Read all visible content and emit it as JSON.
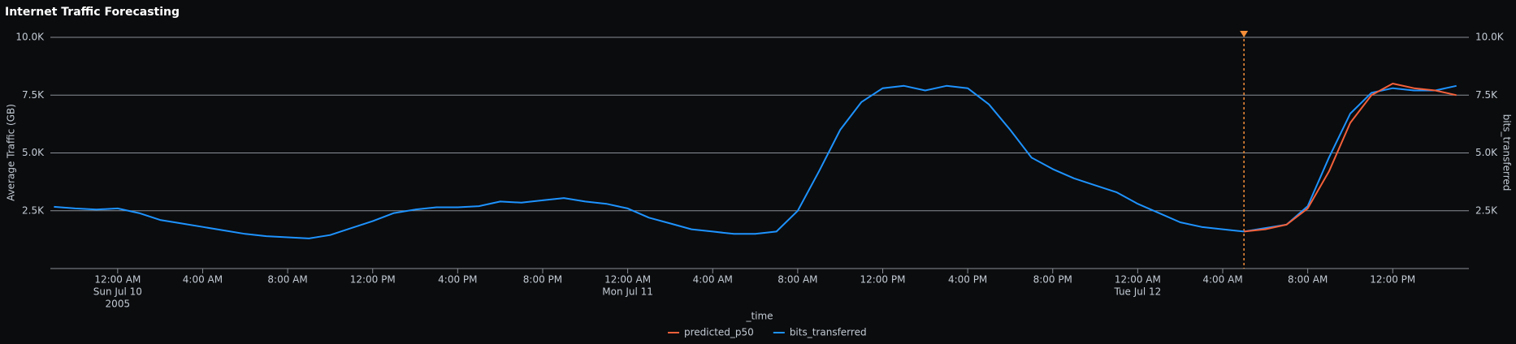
{
  "chart_data": {
    "type": "line",
    "title": "Internet Traffic Forecasting",
    "x_label": "_time",
    "y_label": "Average Traffic (GB)",
    "y2_label": "bits_transferred",
    "x": [
      "2005-07-09T21:00",
      "2005-07-09T22:00",
      "2005-07-09T23:00",
      "2005-07-10T00:00",
      "2005-07-10T01:00",
      "2005-07-10T02:00",
      "2005-07-10T03:00",
      "2005-07-10T04:00",
      "2005-07-10T05:00",
      "2005-07-10T06:00",
      "2005-07-10T07:00",
      "2005-07-10T08:00",
      "2005-07-10T09:00",
      "2005-07-10T10:00",
      "2005-07-10T11:00",
      "2005-07-10T12:00",
      "2005-07-10T13:00",
      "2005-07-10T14:00",
      "2005-07-10T15:00",
      "2005-07-10T16:00",
      "2005-07-10T17:00",
      "2005-07-10T18:00",
      "2005-07-10T19:00",
      "2005-07-10T20:00",
      "2005-07-10T21:00",
      "2005-07-10T22:00",
      "2005-07-10T23:00",
      "2005-07-11T00:00",
      "2005-07-11T01:00",
      "2005-07-11T02:00",
      "2005-07-11T03:00",
      "2005-07-11T04:00",
      "2005-07-11T05:00",
      "2005-07-11T06:00",
      "2005-07-11T07:00",
      "2005-07-11T08:00",
      "2005-07-11T09:00",
      "2005-07-11T10:00",
      "2005-07-11T11:00",
      "2005-07-11T12:00",
      "2005-07-11T13:00",
      "2005-07-11T14:00",
      "2005-07-11T15:00",
      "2005-07-11T16:00",
      "2005-07-11T17:00",
      "2005-07-11T18:00",
      "2005-07-11T19:00",
      "2005-07-11T20:00",
      "2005-07-11T21:00",
      "2005-07-11T22:00",
      "2005-07-11T23:00",
      "2005-07-12T00:00",
      "2005-07-12T01:00",
      "2005-07-12T02:00",
      "2005-07-12T03:00",
      "2005-07-12T04:00",
      "2005-07-12T05:00",
      "2005-07-12T06:00",
      "2005-07-12T07:00",
      "2005-07-12T08:00",
      "2005-07-12T09:00",
      "2005-07-12T10:00",
      "2005-07-12T11:00",
      "2005-07-12T12:00",
      "2005-07-12T13:00",
      "2005-07-12T14:00",
      "2005-07-12T15:00"
    ],
    "series": [
      {
        "name": "predicted_p50",
        "color": "#f3603a",
        "values": [
          null,
          null,
          null,
          null,
          null,
          null,
          null,
          null,
          null,
          null,
          null,
          null,
          null,
          null,
          null,
          null,
          null,
          null,
          null,
          null,
          null,
          null,
          null,
          null,
          null,
          null,
          null,
          null,
          null,
          null,
          null,
          null,
          null,
          null,
          null,
          null,
          null,
          null,
          null,
          null,
          null,
          null,
          null,
          null,
          null,
          null,
          null,
          null,
          null,
          null,
          null,
          null,
          null,
          null,
          null,
          null,
          1600,
          1700,
          1900,
          2600,
          4200,
          6300,
          7500,
          8000,
          7800,
          7700,
          7500
        ]
      },
      {
        "name": "bits_transferred",
        "color": "#1e93ff",
        "values": [
          2670,
          2600,
          2550,
          2600,
          2400,
          2100,
          1950,
          1800,
          1650,
          1500,
          1400,
          1350,
          1300,
          1450,
          1750,
          2050,
          2400,
          2550,
          2650,
          2650,
          2700,
          2900,
          2850,
          2950,
          3050,
          2900,
          2800,
          2600,
          2200,
          1950,
          1700,
          1600,
          1500,
          1500,
          1600,
          2500,
          4200,
          6000,
          7200,
          7800,
          7900,
          7700,
          7900,
          7800,
          7100,
          6000,
          4800,
          4300,
          3900,
          3600,
          3300,
          2800,
          2400,
          2000,
          1800,
          1700,
          1600,
          1750,
          1900,
          2700,
          4800,
          6700,
          7600,
          7800,
          7700,
          7700,
          7900
        ]
      }
    ],
    "xlim": [
      "2005-07-09T20:50",
      "2005-07-12T15:35"
    ],
    "xticks": [
      {
        "value": "2005-07-10T00:00",
        "label": [
          "12:00 AM",
          "Sun Jul 10",
          "2005"
        ]
      },
      {
        "value": "2005-07-10T04:00",
        "label": "4:00 AM"
      },
      {
        "value": "2005-07-10T08:00",
        "label": "8:00 AM"
      },
      {
        "value": "2005-07-10T12:00",
        "label": "12:00 PM"
      },
      {
        "value": "2005-07-10T16:00",
        "label": "4:00 PM"
      },
      {
        "value": "2005-07-10T20:00",
        "label": "8:00 PM"
      },
      {
        "value": "2005-07-11T00:00",
        "label": [
          "12:00 AM",
          "Mon Jul 11"
        ]
      },
      {
        "value": "2005-07-11T04:00",
        "label": "4:00 AM"
      },
      {
        "value": "2005-07-11T08:00",
        "label": "8:00 AM"
      },
      {
        "value": "2005-07-11T12:00",
        "label": "12:00 PM"
      },
      {
        "value": "2005-07-11T16:00",
        "label": "4:00 PM"
      },
      {
        "value": "2005-07-11T20:00",
        "label": "8:00 PM"
      },
      {
        "value": "2005-07-12T00:00",
        "label": [
          "12:00 AM",
          "Tue Jul 12"
        ]
      },
      {
        "value": "2005-07-12T04:00",
        "label": "4:00 AM"
      },
      {
        "value": "2005-07-12T08:00",
        "label": "8:00 AM"
      },
      {
        "value": "2005-07-12T12:00",
        "label": "12:00 PM"
      }
    ],
    "ylim": [
      0,
      10000
    ],
    "yticks": [
      {
        "value": 2500,
        "label": "2.5K"
      },
      {
        "value": 5000,
        "label": "5.0K"
      },
      {
        "value": 7500,
        "label": "7.5K"
      },
      {
        "value": 10000,
        "label": "10.0K"
      }
    ],
    "y2lim": [
      0,
      10000
    ],
    "y2ticks": [
      {
        "value": 2500,
        "label": "2.5K"
      },
      {
        "value": 5000,
        "label": "5.0K"
      },
      {
        "value": 7500,
        "label": "7.5K"
      },
      {
        "value": 10000,
        "label": "10.0K"
      }
    ],
    "grid": true,
    "legend": "bottom",
    "marker_x": "2005-07-12T05:00",
    "marker_color": "#f58f39"
  }
}
